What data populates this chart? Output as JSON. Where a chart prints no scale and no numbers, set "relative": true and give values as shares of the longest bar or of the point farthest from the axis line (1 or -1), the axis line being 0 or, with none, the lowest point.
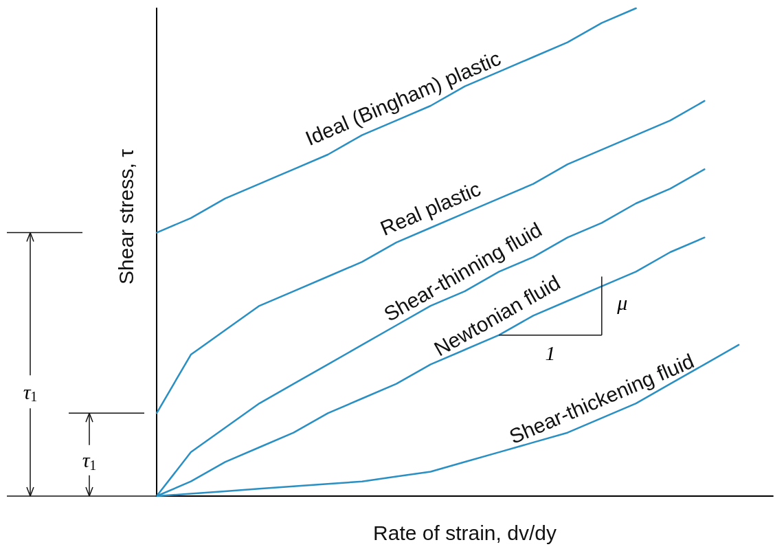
{
  "chart_data": {
    "type": "line",
    "relative": true,
    "xlabel": "Rate of strain, dv/dy",
    "ylabel": "Shear stress, τ",
    "categories": [
      null,
      null,
      null,
      null,
      null,
      null,
      null,
      null,
      null,
      null,
      null,
      null,
      null,
      null,
      null,
      null,
      null,
      null,
      null
    ],
    "series": [
      {
        "name": "Ideal (Bingham) plastic",
        "color": "#2a8fc2",
        "values": [
          0.54,
          0.57,
          0.61,
          0.64,
          0.67,
          0.7,
          0.74,
          0.77,
          0.8,
          0.84,
          0.87,
          0.9,
          0.93,
          0.97,
          1.0,
          null,
          null,
          null,
          null
        ]
      },
      {
        "name": "Real plastic",
        "color": "#2a8fc2",
        "values": [
          0.17,
          0.29,
          0.34,
          0.39,
          0.42,
          0.45,
          0.48,
          0.52,
          0.55,
          0.58,
          0.61,
          0.64,
          0.68,
          0.71,
          0.74,
          0.77,
          0.81,
          null,
          null
        ]
      },
      {
        "name": "Shear-thinning fluid",
        "color": "#2a8fc2",
        "values": [
          0,
          0.09,
          0.14,
          0.19,
          0.23,
          0.27,
          0.31,
          0.35,
          0.39,
          0.42,
          0.46,
          0.49,
          0.53,
          0.56,
          0.6,
          0.63,
          0.67,
          null,
          null
        ]
      },
      {
        "name": "Newtonian fluid",
        "color": "#2a8fc2",
        "values": [
          0,
          0.03,
          0.07,
          0.1,
          0.13,
          0.17,
          0.2,
          0.23,
          0.27,
          0.3,
          0.33,
          0.37,
          0.4,
          0.43,
          0.46,
          0.5,
          0.53,
          null,
          null
        ]
      },
      {
        "name": "Shear-thickening fluid",
        "color": "#2a8fc2",
        "values": [
          0,
          0.005,
          0.01,
          0.015,
          0.02,
          0.025,
          0.03,
          0.04,
          0.05,
          0.07,
          0.09,
          0.11,
          0.13,
          0.16,
          0.19,
          0.23,
          0.27,
          0.31,
          null
        ]
      }
    ],
    "annotations": [
      "τ$_{1}$",
      "τ$_{1}$",
      "μ",
      "1"
    ],
    "legend": false,
    "grid": false,
    "marker": "none",
    "line_style": "solid"
  }
}
